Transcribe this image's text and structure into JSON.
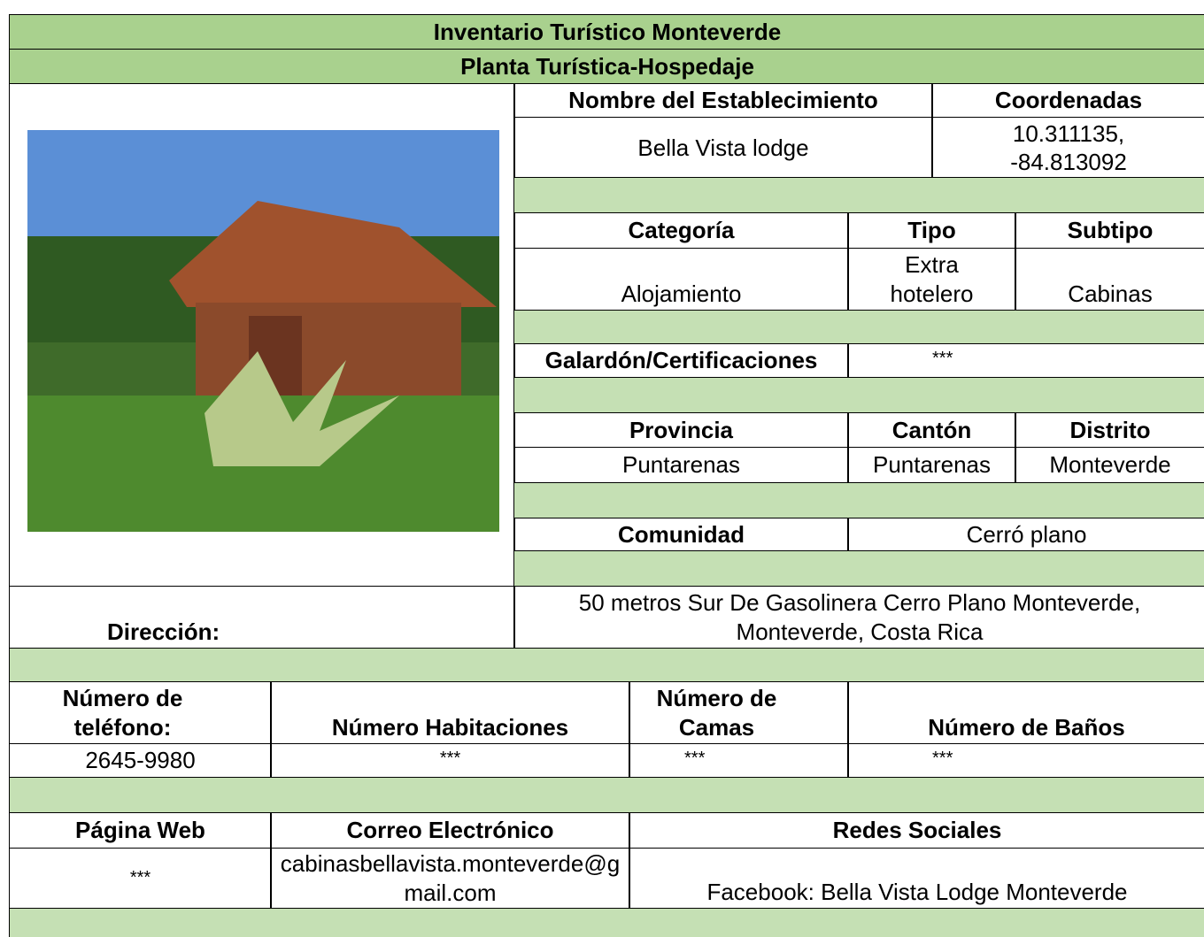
{
  "header": {
    "title": "Inventario Turístico Monteverde",
    "subtitle": "Planta Turística-Hospedaje"
  },
  "establishment": {
    "name_label": "Nombre del Establecimiento",
    "name": "Bella Vista lodge",
    "coordinates_label": "Coordenadas",
    "coordinates": "10.311135, -84.813092"
  },
  "classification": {
    "category_label": "Categoría",
    "category": "Alojamiento",
    "type_label": "Tipo",
    "type": "Extra hotelero",
    "subtype_label": "Subtipo",
    "subtype": "Cabinas"
  },
  "awards": {
    "label": "Galardón/Certificaciones",
    "value": "***"
  },
  "location": {
    "province_label": "Provincia",
    "province": "Puntarenas",
    "canton_label": "Cantón",
    "canton": "Puntarenas",
    "district_label": "Distrito",
    "district": "Monteverde",
    "community_label": "Comunidad",
    "community": "Cerró plano",
    "address_label": "Dirección:",
    "address": "50 metros Sur De Gasolinera Cerro Plano Monteverde, Monteverde, Costa Rica"
  },
  "capacity": {
    "phone_label": "Número de teléfono:",
    "phone": "2645-9980",
    "rooms_label": "Número Habitaciones",
    "rooms": "***",
    "beds_label": "Número de Camas",
    "beds": "***",
    "baths_label": "Número de Baños",
    "baths": "***"
  },
  "contact": {
    "web_label": "Página Web",
    "web": "***",
    "email_label": "Correo Electrónico",
    "email": "cabinasbellavista.monteverde@gmail.com",
    "social_label": "Redes Sociales",
    "social": "Facebook: Bella Vista Lodge Monteverde"
  }
}
